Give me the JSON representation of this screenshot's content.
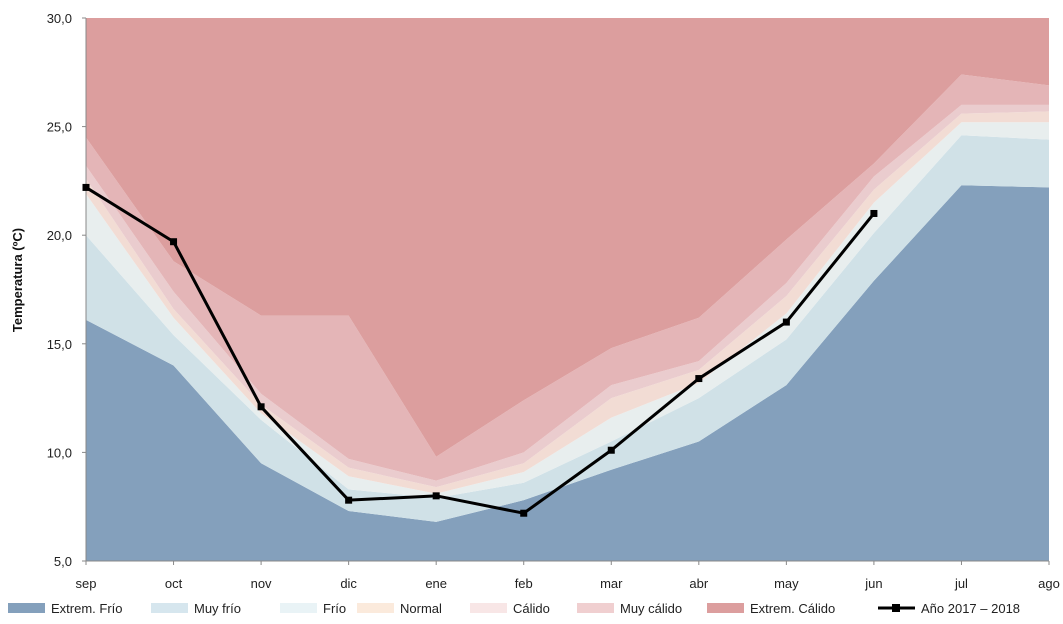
{
  "chart_data": {
    "type": "area",
    "ylabel": "Temperatura (ºC)",
    "xlabel": "",
    "ylim": [
      5,
      30
    ],
    "yticks": [
      "5,0",
      "10,0",
      "15,0",
      "20,0",
      "25,0",
      "30,0"
    ],
    "yticks_values": [
      5,
      10,
      15,
      20,
      25,
      30
    ],
    "categories": [
      "sep",
      "oct",
      "nov",
      "dic",
      "ene",
      "feb",
      "mar",
      "abr",
      "may",
      "jun",
      "jul",
      "ago"
    ],
    "grid": false,
    "legend_position": "bottom",
    "bands": [
      {
        "name": "Extrem. Frío",
        "color": "#84a0bc",
        "values": [
          16.1,
          14.0,
          9.5,
          7.3,
          6.8,
          7.8,
          9.2,
          10.5,
          13.1,
          17.9,
          22.3,
          22.2
        ]
      },
      {
        "name": "Muy frío",
        "color": "#d0e1e7",
        "values": [
          20.0,
          15.4,
          11.5,
          8.3,
          7.9,
          8.6,
          10.5,
          12.5,
          15.2,
          20.1,
          24.6,
          24.4
        ]
      },
      {
        "name": "Frío",
        "color": "#e8eeee",
        "values": [
          21.9,
          16.2,
          11.8,
          8.9,
          8.1,
          9.1,
          11.6,
          13.2,
          16.4,
          21.5,
          25.2,
          25.2
        ]
      },
      {
        "name": "Normal",
        "color": "#f2dcd4",
        "values": [
          22.6,
          16.6,
          12.2,
          9.3,
          8.4,
          9.5,
          12.5,
          13.8,
          17.2,
          22.1,
          25.6,
          25.7
        ]
      },
      {
        "name": "Cálido",
        "color": "#eaccce",
        "values": [
          23.2,
          17.4,
          12.7,
          9.7,
          8.7,
          10.0,
          13.1,
          14.2,
          17.8,
          22.7,
          26.0,
          26.0
        ]
      },
      {
        "name": "Muy cálido",
        "color": "#e4b5b7",
        "values": [
          24.5,
          18.8,
          16.3,
          16.3,
          9.8,
          12.4,
          14.8,
          16.2,
          19.8,
          23.3,
          27.4,
          26.9
        ]
      },
      {
        "name": "Extrem. Cálido",
        "color": "#dc9e9e",
        "values": [
          30,
          30,
          30,
          30,
          30,
          30,
          30,
          30,
          30,
          30,
          30,
          30
        ]
      }
    ],
    "legend_colors": {
      "Extrem. Frío": "#84a0bc",
      "Muy frío": "#d6e6ee",
      "Frío": "#e9f3f6",
      "Normal": "#fbeadc",
      "Cálido": "#f8e6e6",
      "Muy cálido": "#f0cfd0",
      "Extrem. Cálido": "#dc9e9e"
    },
    "series": [
      {
        "name": "Año 2017 – 2018",
        "color": "#000000",
        "values": [
          22.2,
          19.7,
          12.1,
          7.8,
          8.0,
          7.2,
          10.1,
          13.4,
          16.0,
          21.0,
          null,
          null
        ]
      }
    ],
    "legend": [
      "Extrem. Frío",
      "Muy frío",
      "Frío",
      "Normal",
      "Cálido",
      "Muy cálido",
      "Extrem. Cálido",
      "Año 2017 – 2018"
    ]
  }
}
